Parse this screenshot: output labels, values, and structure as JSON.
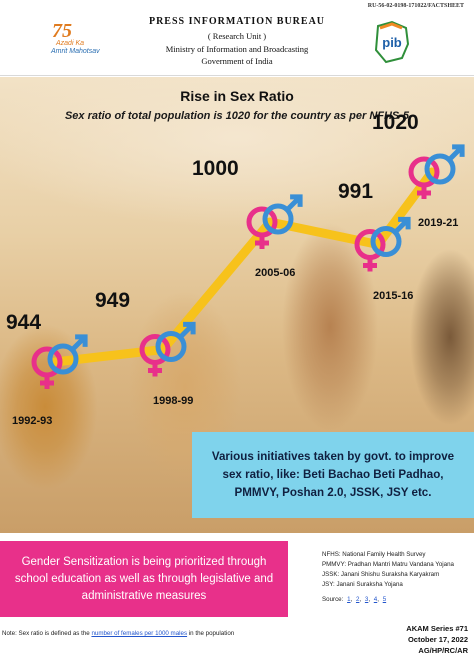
{
  "header": {
    "doc_code": "RU-56-02-0198-171022/FACTSHEET",
    "bureau": "PRESS INFORMATION BUREAU",
    "unit": "( Research Unit )",
    "ministry": "Ministry of Information and Broadcasting",
    "government": "Government of India",
    "azadi_number": "75",
    "azadi_line1": "Azadi Ka",
    "azadi_line2": "Amrit Mahotsav",
    "pib_logo_text": "pib"
  },
  "chart_data": {
    "type": "line",
    "title": "Rise in Sex Ratio",
    "subtitle": "Sex ratio of total population is 1020 for the country as per NFHS-5",
    "categories": [
      "1992-93",
      "1998-99",
      "2005-06",
      "2015-16",
      "2019-21"
    ],
    "values": [
      944,
      949,
      1000,
      991,
      1020
    ],
    "value_labels": [
      "944",
      "949",
      "1000",
      "991",
      "1020"
    ],
    "colors": {
      "line": "#f7c21b",
      "female_symbol": "#e8308a",
      "male_symbol": "#3a8fd6"
    }
  },
  "initiatives_text": "Various initiatives taken by govt. to improve sex ratio, like: Beti Bachao Beti Padhao, PMMVY, Poshan 2.0, JSSK, JSY etc.",
  "gender_text": "Gender Sensitization is being prioritized through school education as well as through legislative and administrative measures",
  "abbreviations": [
    "NFHS: National Family Health Survey",
    "PMMVY: Pradhan Mantri Matru Vandana Yojana",
    "JSSK: Janani Shishu Suraksha Karyakram",
    "JSY: Janani Suraksha Yojana"
  ],
  "source_label": "Source:",
  "source_links": [
    "1",
    "2",
    "3",
    "4",
    "5"
  ],
  "note_prefix": "Note: Sex ratio is defined as the",
  "note_link": "number of females per 1000 males",
  "note_suffix": "in the population",
  "series_info": [
    "AKAM Series #71",
    "October 17, 2022",
    "AG/HP/RC/AR"
  ]
}
